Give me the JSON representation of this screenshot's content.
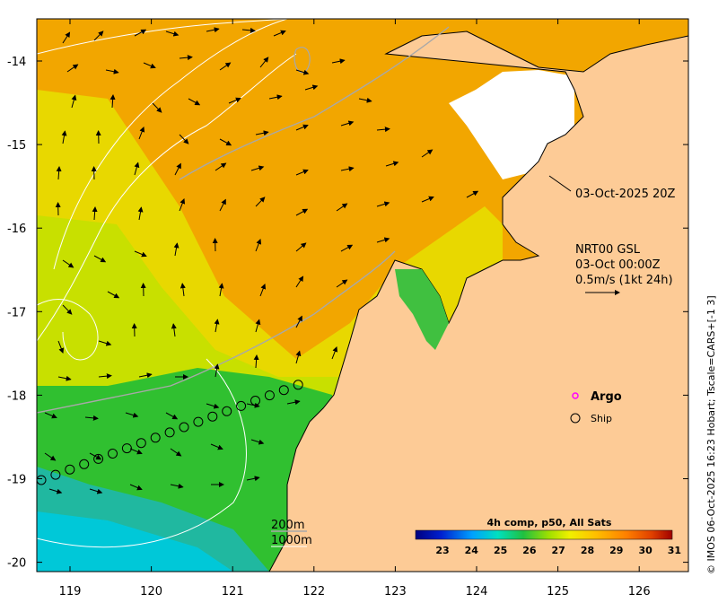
{
  "map": {
    "lat_ticks": [
      "-14",
      "-15",
      "-16",
      "-17",
      "-18",
      "-19",
      "-20"
    ],
    "lon_ticks": [
      "119",
      "120",
      "121",
      "122",
      "123",
      "124",
      "125",
      "126"
    ],
    "sst_time": "03-Oct-2025 20Z",
    "current_source": "NRT00 GSL",
    "current_time": "03-Oct 00:00Z",
    "current_scale": "0.5m/s (1kt 24h)",
    "bathy_200": "200m",
    "bathy_1000": "1000m",
    "legend": {
      "argo": "Argo",
      "ship": "Ship",
      "argo_color": "#ff00ff"
    },
    "colorbar": {
      "title": "4h comp, p50, All Sats",
      "labels": [
        "23",
        "24",
        "25",
        "26",
        "27",
        "28",
        "29",
        "30",
        "31"
      ]
    },
    "credit": "© IMOS 06-Oct-2025 16:23 Hobart; Tscale=CARS+[-1 3]"
  }
}
